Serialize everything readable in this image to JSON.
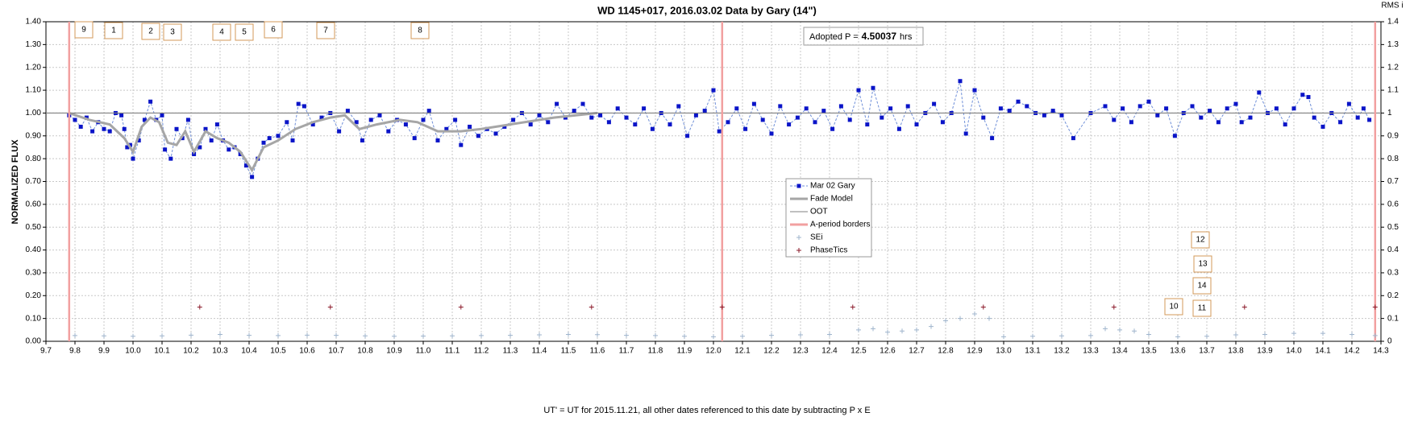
{
  "chart_data": {
    "type": "line",
    "title": "WD 1145+017, 2016.03.02 Data by Gary (14\")",
    "y_label": "NORMALIZED FLUX",
    "y2_label": "RMS i",
    "x_label": "UT' = UT for 2015.11.21, all other dates referenced to this date by subtracting P x E",
    "xlim": [
      9.7,
      14.3
    ],
    "xticks": [
      9.7,
      9.8,
      9.9,
      {
        "value": 10,
        "label": "10.0"
      },
      10.1,
      10.2,
      10.3,
      10.4,
      10.5,
      10.6,
      10.7,
      10.8,
      10.9,
      {
        "value": 11,
        "label": "11.0"
      },
      11.1,
      11.2,
      11.3,
      11.4,
      11.5,
      11.6,
      11.7,
      11.8,
      11.9,
      {
        "value": 12,
        "label": "12.0"
      },
      12.1,
      12.2,
      12.3,
      12.4,
      12.5,
      12.6,
      12.7,
      12.8,
      12.9,
      {
        "value": 13,
        "label": "13.0"
      },
      13.1,
      13.2,
      13.3,
      13.4,
      13.5,
      13.6,
      13.7,
      13.8,
      13.9,
      {
        "value": 14,
        "label": "14.0"
      },
      14.1,
      14.2,
      14.3
    ],
    "ylim": [
      0,
      1.4
    ],
    "yticks": [
      {
        "value": 0,
        "label": "0.00"
      },
      {
        "value": 0.1,
        "label": "0.10"
      },
      {
        "value": 0.2,
        "label": "0.20"
      },
      {
        "value": 0.3,
        "label": "0.30"
      },
      {
        "value": 0.4,
        "label": "0.40"
      },
      {
        "value": 0.5,
        "label": "0.50"
      },
      {
        "value": 0.6,
        "label": "0.60"
      },
      {
        "value": 0.7,
        "label": "0.70"
      },
      {
        "value": 0.8,
        "label": "0.80"
      },
      {
        "value": 0.9,
        "label": "0.90"
      },
      {
        "value": 1,
        "label": "1.00"
      },
      {
        "value": 1.1,
        "label": "1.10"
      },
      {
        "value": 1.2,
        "label": "1.20"
      },
      {
        "value": 1.3,
        "label": "1.30"
      },
      {
        "value": 1.4,
        "label": "1.40"
      }
    ],
    "y2lim": [
      0,
      1.4
    ],
    "y2ticks": [
      0,
      0.1,
      0.2,
      0.3,
      0.4,
      0.5,
      0.6,
      0.7,
      0.8,
      0.9,
      1,
      1.1,
      1.2,
      1.3,
      1.4
    ],
    "grid": true,
    "series": [
      {
        "name": "Mar 02 Gary",
        "color": "#0a14c8",
        "style": "dashed-markers",
        "x": [
          9.78,
          9.8,
          9.82,
          9.84,
          9.86,
          9.88,
          9.9,
          9.92,
          9.94,
          9.96,
          9.97,
          9.98,
          9.99,
          10.0,
          10.02,
          10.04,
          10.06,
          10.08,
          10.1,
          10.11,
          10.13,
          10.15,
          10.17,
          10.19,
          10.21,
          10.23,
          10.25,
          10.27,
          10.29,
          10.31,
          10.33,
          10.35,
          10.37,
          10.39,
          10.41,
          10.43,
          10.45,
          10.47,
          10.5,
          10.53,
          10.55,
          10.57,
          10.59,
          10.62,
          10.65,
          10.68,
          10.71,
          10.74,
          10.77,
          10.79,
          10.82,
          10.85,
          10.88,
          10.91,
          10.94,
          10.97,
          11.0,
          11.02,
          11.05,
          11.08,
          11.11,
          11.13,
          11.16,
          11.19,
          11.22,
          11.25,
          11.28,
          11.31,
          11.34,
          11.37,
          11.4,
          11.43,
          11.46,
          11.49,
          11.52,
          11.55,
          11.58,
          11.61,
          11.64,
          11.67,
          11.7,
          11.73,
          11.76,
          11.79,
          11.82,
          11.85,
          11.88,
          11.91,
          11.94,
          11.97,
          12.0,
          12.02,
          12.05,
          12.08,
          12.11,
          12.14,
          12.17,
          12.2,
          12.23,
          12.26,
          12.29,
          12.32,
          12.35,
          12.38,
          12.41,
          12.44,
          12.47,
          12.5,
          12.53,
          12.55,
          12.58,
          12.61,
          12.64,
          12.67,
          12.7,
          12.73,
          12.76,
          12.79,
          12.82,
          12.85,
          12.87,
          12.9,
          12.93,
          12.96,
          12.99,
          13.02,
          13.05,
          13.08,
          13.11,
          13.14,
          13.17,
          13.2,
          13.24,
          13.3,
          13.35,
          13.38,
          13.41,
          13.44,
          13.47,
          13.5,
          13.53,
          13.56,
          13.59,
          13.62,
          13.65,
          13.68,
          13.71,
          13.74,
          13.77,
          13.8,
          13.82,
          13.85,
          13.88,
          13.91,
          13.94,
          13.97,
          14.0,
          14.03,
          14.05,
          14.07,
          14.1,
          14.13,
          14.16,
          14.19,
          14.22,
          14.24,
          14.26
        ],
        "values": [
          0.99,
          0.97,
          0.94,
          0.98,
          0.92,
          0.96,
          0.93,
          0.92,
          1.0,
          0.99,
          0.93,
          0.85,
          0.86,
          0.8,
          0.88,
          0.97,
          1.05,
          0.97,
          0.99,
          0.84,
          0.8,
          0.93,
          0.89,
          0.97,
          0.82,
          0.85,
          0.93,
          0.88,
          0.95,
          0.88,
          0.84,
          0.85,
          0.82,
          0.77,
          0.72,
          0.8,
          0.87,
          0.89,
          0.9,
          0.96,
          0.88,
          1.04,
          1.03,
          0.95,
          0.98,
          1.0,
          0.92,
          1.01,
          0.96,
          0.88,
          0.97,
          0.99,
          0.92,
          0.97,
          0.95,
          0.89,
          0.97,
          1.01,
          0.88,
          0.93,
          0.97,
          0.86,
          0.94,
          0.9,
          0.93,
          0.91,
          0.94,
          0.97,
          1.0,
          0.95,
          0.99,
          0.96,
          1.04,
          0.98,
          1.01,
          1.04,
          0.98,
          0.99,
          0.96,
          1.02,
          0.98,
          0.95,
          1.02,
          0.93,
          1.0,
          0.95,
          1.03,
          0.9,
          0.99,
          1.01,
          1.1,
          0.92,
          0.96,
          1.02,
          0.93,
          1.04,
          0.97,
          0.91,
          1.03,
          0.95,
          0.98,
          1.02,
          0.96,
          1.01,
          0.93,
          1.03,
          0.97,
          1.1,
          0.95,
          1.11,
          0.98,
          1.02,
          0.93,
          1.03,
          0.95,
          1.0,
          1.04,
          0.96,
          1.0,
          1.14,
          0.91,
          1.1,
          0.98,
          0.89,
          1.02,
          1.01,
          1.05,
          1.03,
          1.0,
          0.99,
          1.01,
          0.99,
          0.89,
          1.0,
          1.03,
          0.97,
          1.02,
          0.96,
          1.03,
          1.05,
          0.99,
          1.02,
          0.9,
          1.0,
          1.03,
          0.98,
          1.01,
          0.96,
          1.02,
          1.04,
          0.96,
          0.98,
          1.09,
          1.0,
          1.02,
          0.95,
          1.02,
          1.08,
          1.07,
          0.98,
          0.94,
          1.0,
          0.96,
          1.04,
          0.98,
          1.02,
          0.97
        ]
      },
      {
        "name": "Fade Model",
        "color": "#a6a6a6",
        "style": "thick",
        "x": [
          9.78,
          9.85,
          9.92,
          9.97,
          10.0,
          10.03,
          10.06,
          10.09,
          10.12,
          10.15,
          10.18,
          10.21,
          10.25,
          10.29,
          10.33,
          10.37,
          10.41,
          10.45,
          10.5,
          10.56,
          10.62,
          10.68,
          10.73,
          10.78,
          10.84,
          10.92,
          10.98,
          11.05,
          11.13,
          11.2,
          11.3,
          11.45,
          11.6
        ],
        "values": [
          1.0,
          0.97,
          0.95,
          0.89,
          0.83,
          0.94,
          0.98,
          0.96,
          0.87,
          0.86,
          0.92,
          0.83,
          0.92,
          0.89,
          0.87,
          0.83,
          0.75,
          0.85,
          0.88,
          0.93,
          0.96,
          0.98,
          0.99,
          0.93,
          0.95,
          0.97,
          0.96,
          0.92,
          0.92,
          0.93,
          0.95,
          0.98,
          1.0
        ]
      },
      {
        "name": "OOT",
        "color": "#808080",
        "style": "thin",
        "x": [
          9.7,
          14.3
        ],
        "values": [
          1,
          1
        ]
      },
      {
        "name": "A-period borders",
        "color": "#f2a0a0",
        "style": "vertical",
        "x": [
          9.78,
          12.03,
          14.28
        ]
      },
      {
        "name": "SEi",
        "color": "#9fb4cc",
        "style": "plus",
        "axis": "y2",
        "x": [
          9.8,
          9.9,
          10.0,
          10.1,
          10.2,
          10.3,
          10.4,
          10.5,
          10.6,
          10.7,
          10.8,
          10.9,
          11.0,
          11.1,
          11.2,
          11.3,
          11.4,
          11.5,
          11.6,
          11.7,
          11.8,
          11.9,
          12.0,
          12.1,
          12.2,
          12.3,
          12.4,
          12.5,
          12.55,
          12.6,
          12.65,
          12.7,
          12.75,
          12.8,
          12.85,
          12.9,
          12.95,
          13.0,
          13.1,
          13.2,
          13.3,
          13.35,
          13.4,
          13.45,
          13.5,
          13.6,
          13.7,
          13.8,
          13.9,
          14.0,
          14.1,
          14.2,
          14.28
        ],
        "values": [
          0.025,
          0.024,
          0.022,
          0.024,
          0.027,
          0.03,
          0.026,
          0.025,
          0.027,
          0.026,
          0.024,
          0.022,
          0.023,
          0.024,
          0.025,
          0.026,
          0.028,
          0.03,
          0.029,
          0.026,
          0.025,
          0.022,
          0.02,
          0.022,
          0.026,
          0.028,
          0.03,
          0.05,
          0.055,
          0.04,
          0.045,
          0.05,
          0.065,
          0.09,
          0.1,
          0.12,
          0.1,
          0.02,
          0.022,
          0.024,
          0.025,
          0.055,
          0.05,
          0.045,
          0.03,
          0.02,
          0.022,
          0.028,
          0.03,
          0.035,
          0.035,
          0.03,
          0.025
        ]
      },
      {
        "name": "PhaseTics",
        "color": "#8b1a2a",
        "style": "plus",
        "x": [
          10.23,
          10.68,
          11.13,
          11.58,
          12.03,
          12.48,
          12.93,
          13.38,
          13.83,
          14.28
        ],
        "values": [
          0.15,
          0.15,
          0.15,
          0.15,
          0.15,
          0.15,
          0.15,
          0.15,
          0.15,
          0.15
        ]
      }
    ],
    "annotations": [
      "9",
      "1",
      "2",
      "3",
      "4",
      "5",
      "6",
      "7",
      "8",
      "12",
      "13",
      "14",
      "10",
      "11"
    ],
    "period_label": "Adopted P =",
    "period": 4.50037,
    "period_unit": "hrs"
  }
}
